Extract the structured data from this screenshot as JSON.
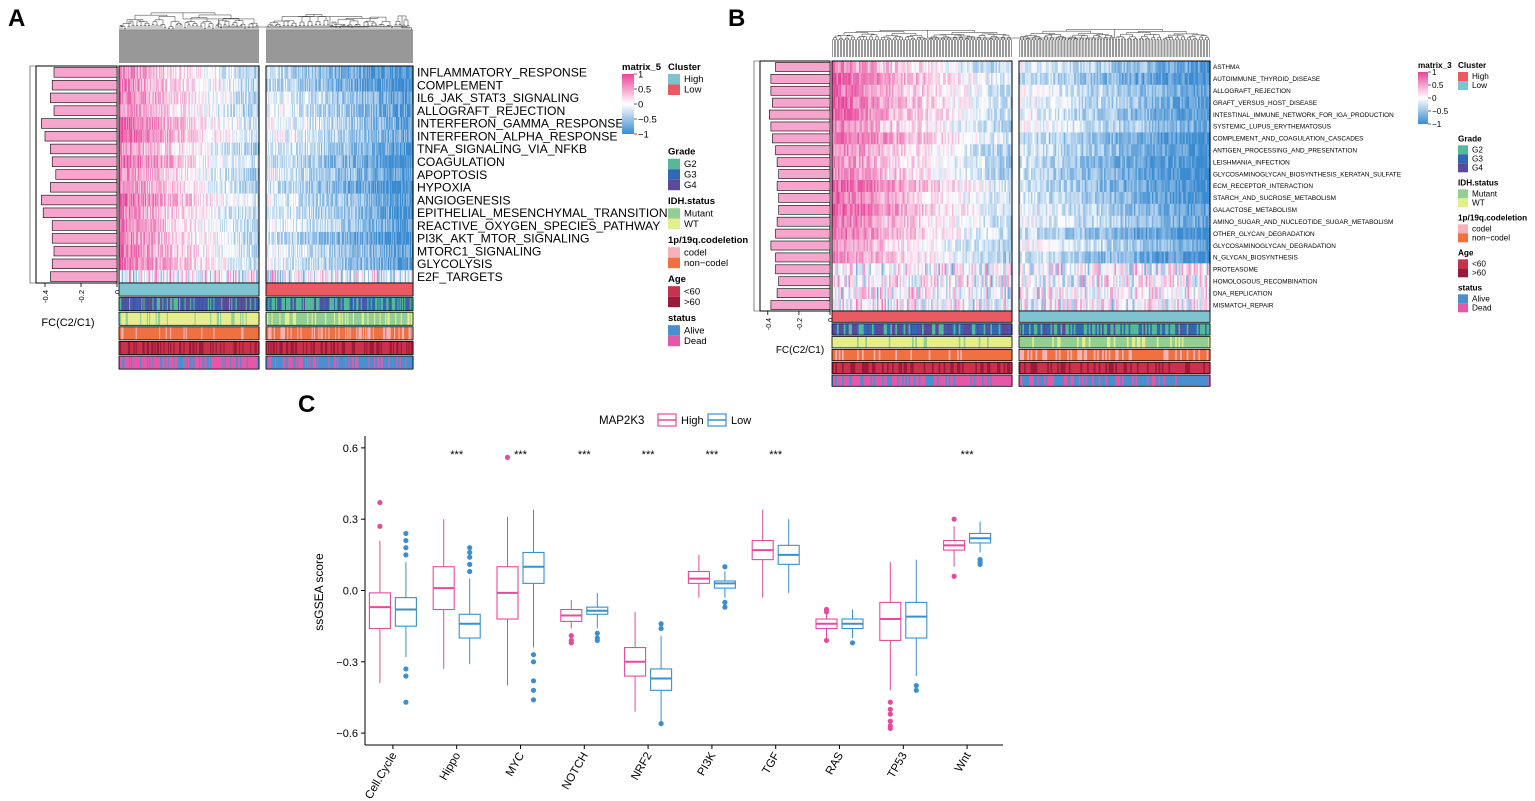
{
  "panel_labels": [
    "A",
    "B",
    "C"
  ],
  "colors": {
    "heat_high": "#e7459a",
    "heat_mid": "#ffffff",
    "heat_low": "#3b8bd1",
    "bar_fill": "#f6a5cd",
    "cluster_high": "#7ec4d0",
    "cluster_low": "#ea5a62",
    "grade_g2": "#55b89a",
    "grade_g3": "#3068b5",
    "grade_g4": "#5b4a9a",
    "idh_mutant": "#93cf95",
    "idh_wt": "#e4ee8c",
    "codel_codel": "#f5b3b8",
    "codel_noncodel": "#ef7040",
    "age_lt60": "#c9324a",
    "age_gt60": "#9b1a3a",
    "status_alive": "#4a8fd0",
    "status_dead": "#e658a6",
    "box_high": "#e44b9b",
    "box_low": "#3b8fce"
  },
  "chart_data": [
    {
      "type": "heatmap",
      "panel": "A",
      "rows": [
        "INFLAMMATORY_RESPONSE",
        "COMPLEMENT",
        "IL6_JAK_STAT3_SIGNALING",
        "ALLOGRAFT_REJECTION",
        "INTERFERON_GAMMA_RESPONSE",
        "INTERFERON_ALPHA_RESPONSE",
        "TNFA_SIGNALING_VIA_NFKB",
        "COAGULATION",
        "APOPTOSIS",
        "HYPOXIA",
        "ANGIOGENESIS",
        "EPITHELIAL_MESENCHYMAL_TRANSITION",
        "REACTIVE_OXYGEN_SPECIES_PATHWAY",
        "PI3K_AKT_MTOR_SIGNALING",
        "MTORC1_SIGNALING",
        "GLYCOLYSIS",
        "E2F_TARGETS"
      ],
      "fc_values": [
        -0.35,
        -0.36,
        -0.37,
        -0.35,
        -0.42,
        -0.4,
        -0.37,
        -0.36,
        -0.34,
        -0.37,
        -0.42,
        -0.41,
        -0.36,
        -0.36,
        -0.35,
        -0.36,
        -0.37
      ],
      "fc_label": "FC(C2/C1)",
      "fc_ticks": [
        "-0.4",
        "-0.2",
        "0"
      ],
      "fc_range": [
        -0.45,
        0
      ],
      "legend_scale": {
        "title": "matrix_5",
        "ticks": [
          "1",
          "0.5",
          "0",
          "-0.5",
          "-1"
        ]
      },
      "legends": [
        {
          "title": "Cluster",
          "items": [
            {
              "label": "High",
              "color": "#7ec4d0"
            },
            {
              "label": "Low",
              "color": "#ea5a62"
            }
          ]
        },
        {
          "title": "Grade",
          "items": [
            {
              "label": "G2",
              "color": "#55b89a"
            },
            {
              "label": "G3",
              "color": "#3068b5"
            },
            {
              "label": "G4",
              "color": "#5b4a9a"
            }
          ]
        },
        {
          "title": "IDH.status",
          "items": [
            {
              "label": "Mutant",
              "color": "#93cf95"
            },
            {
              "label": "WT",
              "color": "#e4ee8c"
            }
          ]
        },
        {
          "title": "1p/19q.codeletion",
          "items": [
            {
              "label": "codel",
              "color": "#f5b3b8"
            },
            {
              "label": "non−codel",
              "color": "#ef7040"
            }
          ]
        },
        {
          "title": "Age",
          "items": [
            {
              "label": "<60",
              "color": "#c9324a"
            },
            {
              "label": ">60",
              "color": "#9b1a3a"
            }
          ]
        },
        {
          "title": "status",
          "items": [
            {
              "label": "Alive",
              "color": "#4a8fd0"
            },
            {
              "label": "Dead",
              "color": "#e658a6"
            }
          ]
        }
      ],
      "left_cluster": "High",
      "right_cluster": "Low"
    },
    {
      "type": "heatmap",
      "panel": "B",
      "rows": [
        "ASTHMA",
        "AUTOIMMUNE_THYROID_DISEASE",
        "ALLOGRAFT_REJECTION",
        "GRAFT_VERSUS_HOST_DISEASE",
        "INTESTINAL_IMMUNE_NETWORK_FOR_IGA_PRODUCTION",
        "SYSTEMIC_LUPUS_ERYTHEMATOSUS",
        "COMPLEMENT_AND_COAGULATION_CASCADES",
        "ANTIGEN_PROCESSING_AND_PRESENTATION",
        "LEISHMANIA_INFECTION",
        "GLYCOSAMINOGLYCAN_BIOSYNTHESIS_KERATAN_SULFATE",
        "ECM_RECEPTOR_INTERACTION",
        "STARCH_AND_SUCROSE_METABOLISM",
        "GALACTOSE_METABOLISM",
        "AMINO_SUGAR_AND_NUCLEOTIDE_SUGAR_METABOLISM",
        "OTHER_GLYCAN_DEGRADATION",
        "GLYCOSAMINOGLYCAN_DEGRADATION",
        "N_GLYCAN_BIOSYNTHESIS",
        "PROTEASOME",
        "HOMOLOGOUS_RECOMBINATION",
        "DNA_REPLICATION",
        "MISMATCH_REPAIR"
      ],
      "fc_values": [
        -0.35,
        -0.38,
        -0.38,
        -0.37,
        -0.39,
        -0.38,
        -0.37,
        -0.35,
        -0.34,
        -0.33,
        -0.34,
        -0.33,
        -0.33,
        -0.34,
        -0.35,
        -0.38,
        -0.35,
        -0.35,
        -0.33,
        -0.34,
        -0.38
      ],
      "fc_label": "FC(C2/C1)",
      "fc_ticks": [
        "-0.4",
        "-0.2",
        "0"
      ],
      "fc_range": [
        -0.45,
        0
      ],
      "legend_scale": {
        "title": "matrix_3",
        "ticks": [
          "1",
          "0.5",
          "0",
          "-0.5",
          "-1"
        ]
      },
      "legends": [
        {
          "title": "Cluster",
          "items": [
            {
              "label": "High",
              "color": "#ea5a62"
            },
            {
              "label": "Low",
              "color": "#7ec4d0"
            }
          ]
        },
        {
          "title": "Grade",
          "items": [
            {
              "label": "G2",
              "color": "#55b89a"
            },
            {
              "label": "G3",
              "color": "#3068b5"
            },
            {
              "label": "G4",
              "color": "#5b4a9a"
            }
          ]
        },
        {
          "title": "IDH.status",
          "items": [
            {
              "label": "Mutant",
              "color": "#93cf95"
            },
            {
              "label": "WT",
              "color": "#e4ee8c"
            }
          ]
        },
        {
          "title": "1p/19q.codeletion",
          "items": [
            {
              "label": "codel",
              "color": "#f5b3b8"
            },
            {
              "label": "non−codel",
              "color": "#ef7040"
            }
          ]
        },
        {
          "title": "Age",
          "items": [
            {
              "label": "<60",
              "color": "#c9324a"
            },
            {
              "label": ">60",
              "color": "#9b1a3a"
            }
          ]
        },
        {
          "title": "status",
          "items": [
            {
              "label": "Alive",
              "color": "#4a8fd0"
            },
            {
              "label": "Dead",
              "color": "#e658a6"
            }
          ]
        }
      ],
      "left_cluster": "High",
      "right_cluster": "Low"
    },
    {
      "type": "box",
      "panel": "C",
      "legend_title": "MAP2K3",
      "series_names": [
        "High",
        "Low"
      ],
      "ylabel": "ssGSEA score",
      "ylim": [
        -0.65,
        0.65
      ],
      "yticks": [
        -0.6,
        -0.3,
        0.0,
        0.3,
        0.6
      ],
      "ytick_labels": [
        "−0.6",
        "−0.3",
        "0.0",
        "0.3",
        "0.6"
      ],
      "categories": [
        "Cell.Cycle",
        "Hippo",
        "MYC",
        "NOTCH",
        "NRF2",
        "PI3K",
        "TGF",
        "RAS",
        "TP53",
        "Wnt"
      ],
      "significance": [
        "",
        "***",
        "***",
        "***",
        "***",
        "***",
        "***",
        "",
        "",
        "***"
      ],
      "high": [
        {
          "min": -0.39,
          "q1": -0.16,
          "median": -0.07,
          "q3": -0.01,
          "max": 0.21,
          "outliers": [
            0.27,
            0.37
          ]
        },
        {
          "min": -0.33,
          "q1": -0.08,
          "median": 0.01,
          "q3": 0.1,
          "max": 0.3,
          "outliers": []
        },
        {
          "min": -0.4,
          "q1": -0.12,
          "median": -0.01,
          "q3": 0.1,
          "max": 0.31,
          "outliers": [
            0.56
          ]
        },
        {
          "min": -0.16,
          "q1": -0.13,
          "median": -0.105,
          "q3": -0.08,
          "max": -0.04,
          "outliers": [
            -0.19,
            -0.21,
            -0.22
          ]
        },
        {
          "min": -0.51,
          "q1": -0.36,
          "median": -0.3,
          "q3": -0.24,
          "max": -0.09,
          "outliers": []
        },
        {
          "min": -0.03,
          "q1": 0.03,
          "median": 0.05,
          "q3": 0.08,
          "max": 0.15,
          "outliers": []
        },
        {
          "min": -0.03,
          "q1": 0.13,
          "median": 0.17,
          "q3": 0.21,
          "max": 0.34,
          "outliers": []
        },
        {
          "min": -0.2,
          "q1": -0.16,
          "median": -0.14,
          "q3": -0.12,
          "max": -0.1,
          "outliers": [
            -0.09,
            -0.08,
            -0.21
          ]
        },
        {
          "min": -0.42,
          "q1": -0.21,
          "median": -0.12,
          "q3": -0.05,
          "max": 0.12,
          "outliers": [
            -0.47,
            -0.5,
            -0.52,
            -0.55,
            -0.57,
            -0.58
          ]
        },
        {
          "min": 0.1,
          "q1": 0.17,
          "median": 0.19,
          "q3": 0.21,
          "max": 0.27,
          "outliers": [
            0.06,
            0.3
          ]
        }
      ],
      "low": [
        {
          "min": -0.28,
          "q1": -0.15,
          "median": -0.08,
          "q3": -0.03,
          "max": 0.12,
          "outliers": [
            -0.33,
            -0.36,
            -0.47,
            0.15,
            0.18,
            0.21,
            0.24
          ]
        },
        {
          "min": -0.31,
          "q1": -0.2,
          "median": -0.14,
          "q3": -0.1,
          "max": 0.05,
          "outliers": [
            0.08,
            0.11,
            0.14,
            0.16,
            0.18
          ]
        },
        {
          "min": -0.24,
          "q1": 0.03,
          "median": 0.1,
          "q3": 0.16,
          "max": 0.34,
          "outliers": [
            -0.27,
            -0.3,
            -0.38,
            -0.42,
            -0.46
          ]
        },
        {
          "min": -0.16,
          "q1": -0.1,
          "median": -0.085,
          "q3": -0.07,
          "max": -0.01,
          "outliers": [
            -0.18,
            -0.2,
            -0.21
          ]
        },
        {
          "min": -0.56,
          "q1": -0.42,
          "median": -0.37,
          "q3": -0.33,
          "max": -0.19,
          "outliers": [
            -0.14,
            -0.16,
            -0.56
          ]
        },
        {
          "min": -0.03,
          "q1": 0.01,
          "median": 0.03,
          "q3": 0.04,
          "max": 0.08,
          "outliers": [
            -0.05,
            -0.07,
            0.1
          ]
        },
        {
          "min": -0.01,
          "q1": 0.11,
          "median": 0.15,
          "q3": 0.19,
          "max": 0.3,
          "outliers": []
        },
        {
          "min": -0.2,
          "q1": -0.16,
          "median": -0.14,
          "q3": -0.12,
          "max": -0.08,
          "outliers": [
            -0.22
          ]
        },
        {
          "min": -0.36,
          "q1": -0.2,
          "median": -0.11,
          "q3": -0.05,
          "max": 0.13,
          "outliers": [
            -0.4,
            -0.42
          ]
        },
        {
          "min": 0.16,
          "q1": 0.2,
          "median": 0.22,
          "q3": 0.24,
          "max": 0.29,
          "outliers": [
            0.13,
            0.12,
            0.11
          ]
        }
      ]
    }
  ]
}
